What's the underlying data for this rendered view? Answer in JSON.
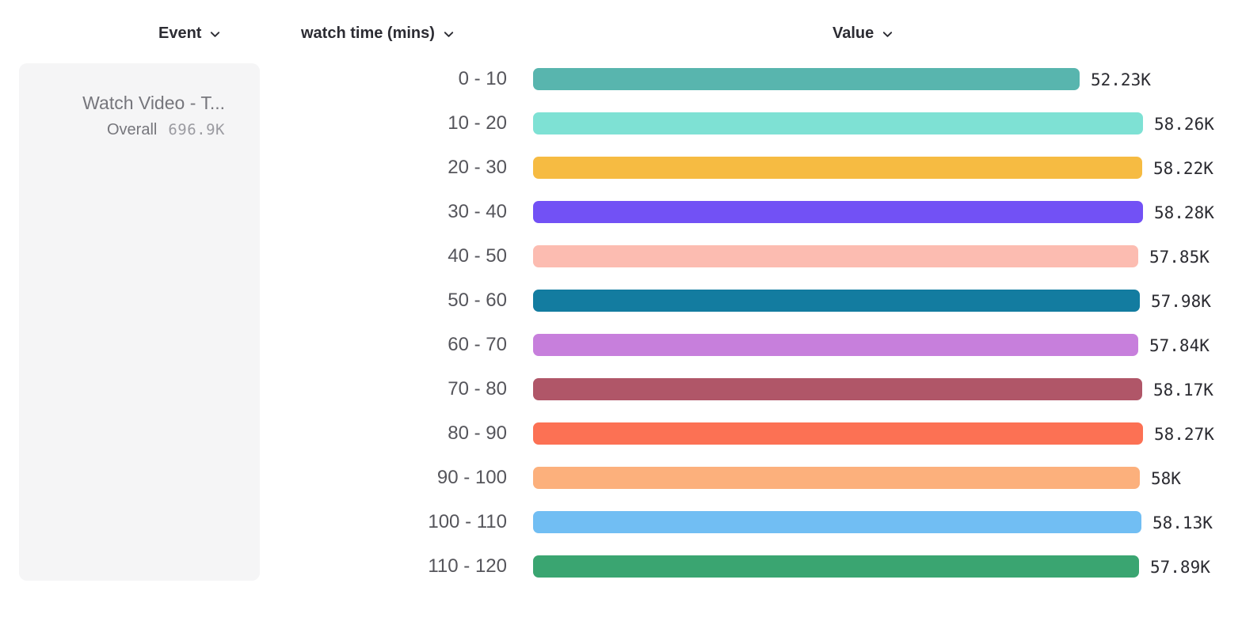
{
  "toolbar": {
    "event_label": "Event",
    "breakdown_label": "watch time (mins)",
    "value_label": "Value"
  },
  "event_card": {
    "title": "Watch Video - T...",
    "overall_label": "Overall",
    "overall_value": "696.9K"
  },
  "chart_data": {
    "type": "bar",
    "orientation": "horizontal",
    "title": "",
    "xlabel": "Value",
    "ylabel": "watch time (mins)",
    "xlim": [
      0,
      58280
    ],
    "grid": false,
    "legend_position": "none",
    "categories": [
      "0 - 10",
      "10 - 20",
      "20 - 30",
      "30 - 40",
      "40 - 50",
      "50 - 60",
      "60 - 70",
      "70 - 80",
      "80 - 90",
      "90 - 100",
      "100 - 110",
      "110 - 120"
    ],
    "values": [
      52230,
      58260,
      58220,
      58280,
      57850,
      57980,
      57840,
      58170,
      58270,
      58000,
      58130,
      57890
    ],
    "value_labels": [
      "52.23K",
      "58.26K",
      "58.22K",
      "58.28K",
      "57.85K",
      "57.98K",
      "57.84K",
      "58.17K",
      "58.27K",
      "58K",
      "58.13K",
      "57.89K"
    ],
    "bar_colors": [
      "#58B5AE",
      "#7EE1D4",
      "#F6BB42",
      "#7251F5",
      "#FCBCB1",
      "#137CA0",
      "#C77FDC",
      "#B05668",
      "#FC7154",
      "#FCB07C",
      "#71BEF3",
      "#3AA571"
    ]
  },
  "colors": {
    "header_text": "#2c2c33",
    "category_text": "#55555b",
    "value_text": "#2b2b31",
    "card_background": "#f5f5f6",
    "card_text": "#76767c",
    "card_value_text": "#9b9ba1",
    "page_background": "#ffffff"
  },
  "icons": {
    "chevron_down": "chevron-down-icon"
  }
}
